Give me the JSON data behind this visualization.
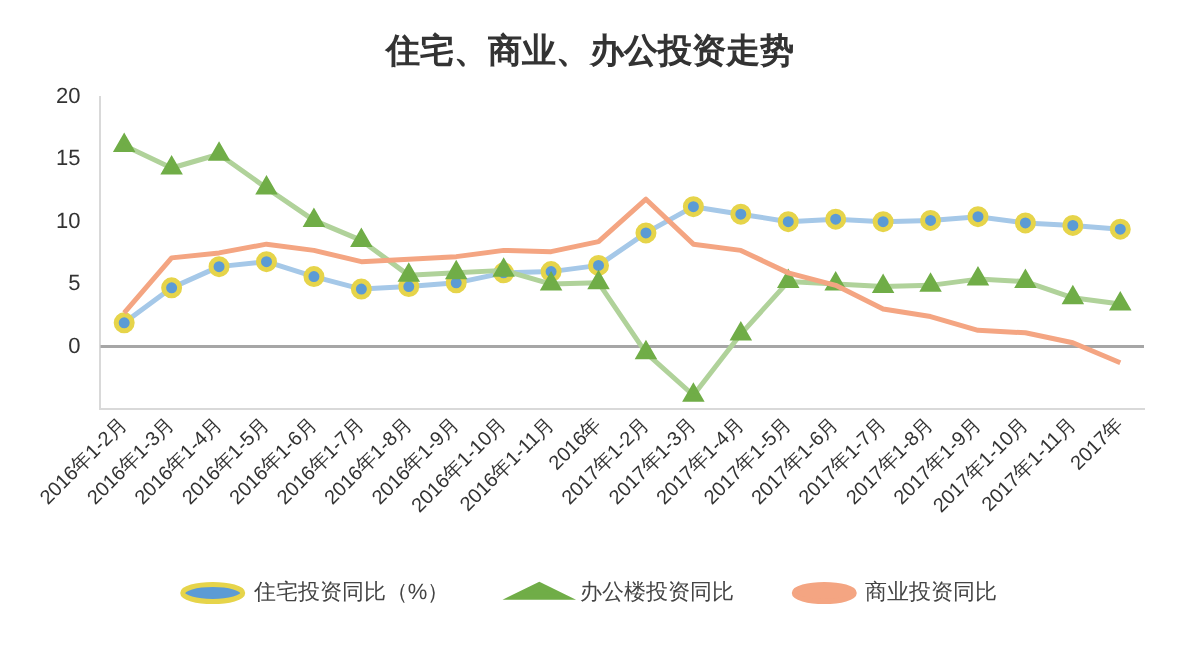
{
  "chart_data": {
    "type": "line",
    "title": "住宅、商业、办公投资走势",
    "categories": [
      "2016年1-2月",
      "2016年1-3月",
      "2016年1-4月",
      "2016年1-5月",
      "2016年1-6月",
      "2016年1-7月",
      "2016年1-8月",
      "2016年1-9月",
      "2016年1-10月",
      "2016年1-11月",
      "2016年",
      "2017年1-2月",
      "2017年1-3月",
      "2017年1-4月",
      "2017年1-5月",
      "2017年1-6月",
      "2017年1-7月",
      "2017年1-8月",
      "2017年1-9月",
      "2017年1-10月",
      "2017年1-11月",
      "2017年"
    ],
    "series": [
      {
        "name": "住宅投资同比（%）",
        "color": "#5b9bd5",
        "marker": "circle",
        "values": [
          1.9,
          4.7,
          6.4,
          6.8,
          5.6,
          4.6,
          4.8,
          5.1,
          5.9,
          6.0,
          6.5,
          9.1,
          11.2,
          10.6,
          10.0,
          10.2,
          10.0,
          10.1,
          10.4,
          9.9,
          9.7,
          9.4
        ]
      },
      {
        "name": "办公楼投资同比",
        "color": "#70ad47",
        "marker": "triangle",
        "values": [
          16.1,
          14.3,
          15.4,
          12.7,
          10.1,
          8.5,
          5.7,
          5.9,
          6.1,
          5.0,
          5.1,
          -0.5,
          -3.9,
          1.0,
          5.2,
          5.0,
          4.8,
          4.9,
          5.4,
          5.2,
          3.9,
          3.4
        ]
      },
      {
        "name": "商业投资同比",
        "color": "#f4a582",
        "marker": "none",
        "values": [
          2.7,
          7.1,
          7.5,
          8.2,
          7.7,
          6.8,
          7.0,
          7.2,
          7.7,
          7.6,
          8.4,
          11.8,
          8.2,
          7.7,
          5.9,
          4.9,
          3.0,
          2.4,
          1.3,
          1.1,
          0.3,
          -1.3
        ]
      }
    ],
    "ylim": [
      -5,
      20
    ],
    "yticks": [
      0,
      5,
      10,
      15,
      20
    ],
    "grid": false,
    "legend": "bottom",
    "ref_lines": [
      {
        "axis": "y",
        "value": 0,
        "color": "#a6a6a6"
      }
    ]
  }
}
